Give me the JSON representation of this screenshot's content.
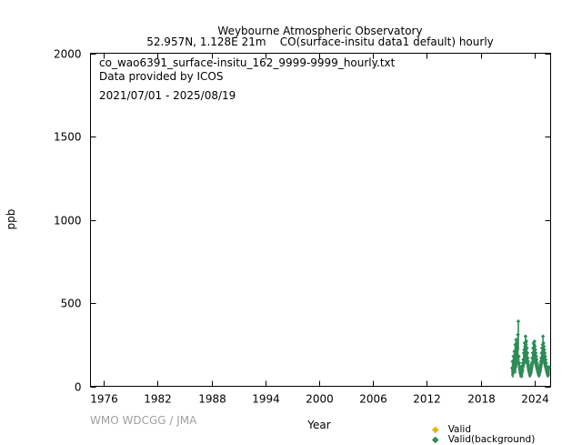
{
  "header": {
    "station": "Weybourne Atmospheric Observatory",
    "location": "52.957N, 1.128E 21m",
    "series_desc": "CO(surface-insitu data1 default) hourly"
  },
  "info": {
    "file": "co_wao6391_surface-insitu_162_9999-9999_hourly.txt",
    "provider": "Data provided by ICOS",
    "period": "2021/07/01 - 2025/08/19"
  },
  "footer": {
    "credit": "WMO WDCGG / JMA"
  },
  "legend": [
    {
      "label": "Valid",
      "color": "#e8b400",
      "symbol": "diamond-icon"
    },
    {
      "label": "Valid(background)",
      "color": "#2e8b57",
      "symbol": "diamond-icon"
    }
  ],
  "chart_data": {
    "type": "scatter",
    "xlabel": "Year",
    "ylabel": "ppb",
    "xlim": [
      1974.5,
      2025.8
    ],
    "ylim": [
      0,
      2000
    ],
    "x_ticks": [
      1976,
      1982,
      1988,
      1994,
      2000,
      2006,
      2012,
      2018,
      2024
    ],
    "y_ticks": [
      0,
      500,
      1000,
      1500,
      2000
    ],
    "grid": false,
    "legend_position": "bottom-right",
    "series": [
      {
        "name": "Valid(background)",
        "color": "#2e8b57",
        "points": [
          [
            2021.5,
            110
          ],
          [
            2021.55,
            150
          ],
          [
            2021.6,
            95
          ],
          [
            2021.65,
            180
          ],
          [
            2021.7,
            130
          ],
          [
            2021.75,
            210
          ],
          [
            2021.8,
            160
          ],
          [
            2021.85,
            250
          ],
          [
            2021.9,
            140
          ],
          [
            2021.95,
            280
          ],
          [
            2022.0,
            200
          ],
          [
            2022.05,
            260
          ],
          [
            2022.1,
            230
          ],
          [
            2022.15,
            310
          ],
          [
            2022.2,
            390
          ],
          [
            2022.25,
            180
          ],
          [
            2022.3,
            140
          ],
          [
            2022.35,
            120
          ],
          [
            2022.4,
            100
          ],
          [
            2022.45,
            115
          ],
          [
            2022.5,
            90
          ],
          [
            2022.55,
            105
          ],
          [
            2022.6,
            120
          ],
          [
            2022.65,
            95
          ],
          [
            2022.7,
            140
          ],
          [
            2022.75,
            160
          ],
          [
            2022.8,
            200
          ],
          [
            2022.85,
            220
          ],
          [
            2022.9,
            260
          ],
          [
            2022.95,
            240
          ],
          [
            2023.0,
            300
          ],
          [
            2023.05,
            250
          ],
          [
            2023.1,
            270
          ],
          [
            2023.15,
            230
          ],
          [
            2023.2,
            200
          ],
          [
            2023.25,
            170
          ],
          [
            2023.3,
            150
          ],
          [
            2023.35,
            130
          ],
          [
            2023.4,
            110
          ],
          [
            2023.45,
            100
          ],
          [
            2023.5,
            95
          ],
          [
            2023.55,
            105
          ],
          [
            2023.6,
            115
          ],
          [
            2023.65,
            125
          ],
          [
            2023.7,
            140
          ],
          [
            2023.75,
            170
          ],
          [
            2023.8,
            200
          ],
          [
            2023.85,
            230
          ],
          [
            2023.9,
            260
          ],
          [
            2023.95,
            250
          ],
          [
            2024.0,
            270
          ],
          [
            2024.05,
            240
          ],
          [
            2024.1,
            220
          ],
          [
            2024.15,
            200
          ],
          [
            2024.2,
            180
          ],
          [
            2024.25,
            160
          ],
          [
            2024.3,
            140
          ],
          [
            2024.35,
            120
          ],
          [
            2024.4,
            110
          ],
          [
            2024.45,
            100
          ],
          [
            2024.5,
            95
          ],
          [
            2024.55,
            105
          ],
          [
            2024.6,
            115
          ],
          [
            2024.65,
            130
          ],
          [
            2024.7,
            150
          ],
          [
            2024.75,
            170
          ],
          [
            2024.8,
            200
          ],
          [
            2024.85,
            230
          ],
          [
            2024.9,
            250
          ],
          [
            2024.95,
            300
          ],
          [
            2025.0,
            260
          ],
          [
            2025.05,
            240
          ],
          [
            2025.1,
            220
          ],
          [
            2025.15,
            200
          ],
          [
            2025.2,
            180
          ],
          [
            2025.25,
            160
          ],
          [
            2025.3,
            140
          ],
          [
            2025.35,
            120
          ],
          [
            2025.4,
            110
          ],
          [
            2025.45,
            100
          ],
          [
            2025.5,
            95
          ],
          [
            2025.55,
            105
          ],
          [
            2025.6,
            110
          ],
          [
            2025.63,
            115
          ]
        ]
      },
      {
        "name": "Valid",
        "color": "#e8b400",
        "points": []
      }
    ]
  }
}
